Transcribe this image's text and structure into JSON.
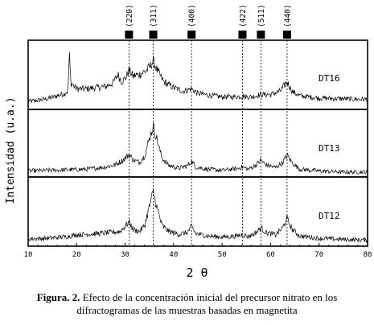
{
  "chart_data": {
    "type": "line",
    "xlabel": "2 θ",
    "ylabel": "Intensidad (u.a.)",
    "xlim": [
      10,
      80
    ],
    "x_ticks": [
      10,
      20,
      30,
      40,
      50,
      60,
      70,
      80
    ],
    "peaks": [
      {
        "label": "(220)",
        "x": 30.8
      },
      {
        "label": "(311)",
        "x": 35.8
      },
      {
        "label": "(400)",
        "x": 43.7
      },
      {
        "label": "(422)",
        "x": 54.2
      },
      {
        "label": "(511)",
        "x": 58.0
      },
      {
        "label": "(440)",
        "x": 63.4
      }
    ],
    "series": [
      {
        "name": "DT16",
        "points": [
          [
            10,
            0.08
          ],
          [
            12,
            0.1
          ],
          [
            14,
            0.13
          ],
          [
            16,
            0.18
          ],
          [
            17.5,
            0.22
          ],
          [
            18.2,
            0.26
          ],
          [
            18.5,
            0.9
          ],
          [
            18.8,
            0.4
          ],
          [
            20,
            0.3
          ],
          [
            22,
            0.3
          ],
          [
            24,
            0.32
          ],
          [
            26,
            0.34
          ],
          [
            27.5,
            0.4
          ],
          [
            28.5,
            0.55
          ],
          [
            29.3,
            0.42
          ],
          [
            30.2,
            0.5
          ],
          [
            30.8,
            0.62
          ],
          [
            31.6,
            0.52
          ],
          [
            33,
            0.55
          ],
          [
            34.5,
            0.62
          ],
          [
            35.2,
            0.7
          ],
          [
            35.8,
            0.78
          ],
          [
            36.6,
            0.62
          ],
          [
            38,
            0.42
          ],
          [
            40,
            0.32
          ],
          [
            42,
            0.26
          ],
          [
            43.7,
            0.3
          ],
          [
            45,
            0.22
          ],
          [
            48,
            0.18
          ],
          [
            50,
            0.16
          ],
          [
            52,
            0.16
          ],
          [
            54.2,
            0.17
          ],
          [
            56,
            0.16
          ],
          [
            58,
            0.2
          ],
          [
            60,
            0.2
          ],
          [
            62,
            0.26
          ],
          [
            63.4,
            0.42
          ],
          [
            64.5,
            0.25
          ],
          [
            66,
            0.18
          ],
          [
            70,
            0.14
          ],
          [
            74,
            0.13
          ],
          [
            78,
            0.12
          ],
          [
            80,
            0.12
          ]
        ]
      },
      {
        "name": "DT13",
        "points": [
          [
            10,
            0.05
          ],
          [
            14,
            0.06
          ],
          [
            18,
            0.07
          ],
          [
            22,
            0.08
          ],
          [
            26,
            0.12
          ],
          [
            28,
            0.16
          ],
          [
            29.5,
            0.24
          ],
          [
            30.8,
            0.34
          ],
          [
            31.8,
            0.24
          ],
          [
            33,
            0.2
          ],
          [
            34,
            0.32
          ],
          [
            35,
            0.62
          ],
          [
            35.8,
            0.84
          ],
          [
            36.6,
            0.6
          ],
          [
            37.6,
            0.28
          ],
          [
            39,
            0.15
          ],
          [
            41,
            0.1
          ],
          [
            42.8,
            0.14
          ],
          [
            43.7,
            0.22
          ],
          [
            44.6,
            0.12
          ],
          [
            47,
            0.08
          ],
          [
            50,
            0.06
          ],
          [
            53,
            0.09
          ],
          [
            54.2,
            0.12
          ],
          [
            55.5,
            0.08
          ],
          [
            57,
            0.16
          ],
          [
            58,
            0.24
          ],
          [
            59,
            0.16
          ],
          [
            61,
            0.11
          ],
          [
            62.5,
            0.2
          ],
          [
            63.4,
            0.33
          ],
          [
            64.4,
            0.2
          ],
          [
            66,
            0.08
          ],
          [
            70,
            0.05
          ],
          [
            75,
            0.03
          ],
          [
            80,
            0.03
          ]
        ]
      },
      {
        "name": "DT12",
        "points": [
          [
            10,
            0.07
          ],
          [
            14,
            0.08
          ],
          [
            18,
            0.11
          ],
          [
            20,
            0.14
          ],
          [
            24,
            0.16
          ],
          [
            27,
            0.18
          ],
          [
            29,
            0.2
          ],
          [
            30.8,
            0.36
          ],
          [
            31.8,
            0.22
          ],
          [
            33,
            0.2
          ],
          [
            34,
            0.3
          ],
          [
            35,
            0.62
          ],
          [
            35.8,
            0.88
          ],
          [
            36.6,
            0.6
          ],
          [
            37.6,
            0.3
          ],
          [
            39,
            0.2
          ],
          [
            41,
            0.15
          ],
          [
            42.8,
            0.18
          ],
          [
            43.7,
            0.28
          ],
          [
            44.6,
            0.16
          ],
          [
            47,
            0.12
          ],
          [
            50,
            0.1
          ],
          [
            53,
            0.12
          ],
          [
            54.2,
            0.14
          ],
          [
            55.5,
            0.11
          ],
          [
            57,
            0.18
          ],
          [
            58,
            0.26
          ],
          [
            59,
            0.18
          ],
          [
            61,
            0.14
          ],
          [
            62.5,
            0.26
          ],
          [
            63.4,
            0.42
          ],
          [
            64.4,
            0.24
          ],
          [
            66,
            0.12
          ],
          [
            70,
            0.08
          ],
          [
            75,
            0.06
          ],
          [
            80,
            0.05
          ]
        ]
      }
    ]
  },
  "caption": {
    "label": "Figura. 2.",
    "line1": " Efecto de la concentración inicial del precursor nitrato en los",
    "line2": "difractogramas de las muestras basadas en magnetita"
  }
}
